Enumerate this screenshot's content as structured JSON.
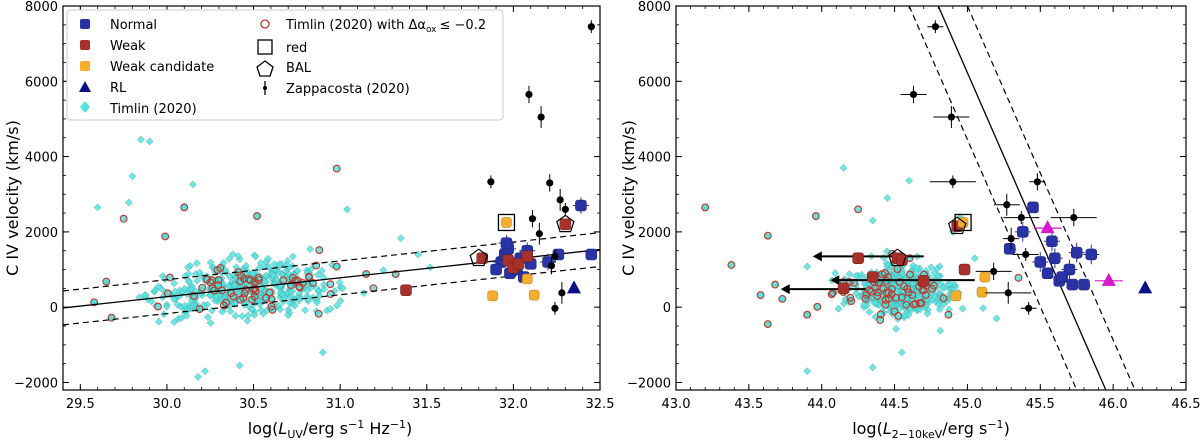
{
  "chart_data": [
    {
      "type": "scatter",
      "xlabel": "log(L_UV/erg s^-1 Hz^-1)",
      "ylabel": "C IV velocity (km/s)",
      "xlim": [
        29.4,
        32.5
      ],
      "ylim": [
        -2200,
        8000
      ],
      "xticks": [
        "29.5",
        "30.0",
        "30.5",
        "31.0",
        "31.5",
        "32.0",
        "32.5"
      ],
      "xtick_values": [
        29.5,
        30.0,
        30.5,
        31.0,
        31.5,
        32.0,
        32.5
      ],
      "yticks": [
        "−2000",
        "0",
        "2000",
        "4000",
        "6000",
        "8000"
      ],
      "ytick_values": [
        -2000,
        0,
        2000,
        4000,
        6000,
        8000
      ],
      "legend": {
        "placement": "top-left",
        "entries": [
          "Normal",
          "Weak",
          "Weak candidate",
          "RL",
          "Timlin (2020)",
          "Timlin (2020) with Δα_ox ≤ −0.2",
          "red",
          "BAL",
          "Zappacosta (2020)"
        ]
      },
      "fit_line": {
        "x": [
          29.4,
          32.5
        ],
        "y": [
          -20,
          1530
        ],
        "scatter": 450
      },
      "series": [
        {
          "name": "Normal",
          "points": [
            [
              31.93,
              1200
            ],
            [
              31.95,
              1400
            ],
            [
              31.97,
              1550
            ],
            [
              31.98,
              900
            ],
            [
              32.0,
              1100
            ],
            [
              32.02,
              1000
            ],
            [
              32.04,
              1300
            ],
            [
              32.06,
              800
            ],
            [
              32.08,
              1500
            ],
            [
              31.9,
              1000
            ],
            [
              32.2,
              1200
            ],
            [
              32.26,
              1400
            ],
            [
              32.39,
              2700
            ],
            [
              32.45,
              1400
            ],
            [
              31.96,
              1700
            ],
            [
              32.1,
              1150
            ]
          ]
        },
        {
          "name": "Weak",
          "points": [
            [
              31.38,
              450
            ],
            [
              31.82,
              1300
            ],
            [
              31.97,
              1250
            ],
            [
              32.0,
              1050
            ],
            [
              32.03,
              1150
            ],
            [
              32.08,
              1350
            ],
            [
              32.3,
              2200
            ]
          ]
        },
        {
          "name": "Weak candidate",
          "points": [
            [
              31.88,
              300
            ],
            [
              32.08,
              750
            ],
            [
              32.12,
              320
            ],
            [
              31.96,
              2250
            ]
          ]
        },
        {
          "name": "RL",
          "points": [
            [
              32.35,
              500
            ]
          ]
        },
        {
          "name": "Zappacosta (2020)",
          "points": [
            [
              32.45,
              7450
            ],
            [
              32.09,
              5650
            ],
            [
              32.16,
              5050
            ],
            [
              31.87,
              3330
            ],
            [
              32.21,
              3300
            ],
            [
              32.27,
              2850
            ],
            [
              32.3,
              2600
            ],
            [
              32.11,
              2350
            ],
            [
              32.15,
              1950
            ],
            [
              32.24,
              1350
            ],
            [
              32.22,
              1100
            ],
            [
              32.28,
              380
            ],
            [
              32.24,
              -30
            ]
          ]
        },
        {
          "name": "Timlin (2020)",
          "points": []
        }
      ]
    },
    {
      "type": "scatter",
      "xlabel": "log(L_2-10keV/erg s^-1)",
      "ylabel": "C IV velocity (km/s)",
      "xlim": [
        43.0,
        46.5
      ],
      "ylim": [
        -2200,
        8000
      ],
      "xticks": [
        "43.0",
        "43.5",
        "44.0",
        "44.5",
        "45.0",
        "45.5",
        "46.0",
        "46.5"
      ],
      "xtick_values": [
        43.0,
        43.5,
        44.0,
        44.5,
        45.0,
        45.5,
        46.0,
        46.5
      ],
      "yticks": [
        "−2000",
        "0",
        "2000",
        "4000",
        "6000",
        "8000"
      ],
      "ytick_values": [
        -2000,
        0,
        2000,
        4000,
        6000,
        8000
      ],
      "fit_line": {
        "x": [
          44.8,
          45.95
        ],
        "y": [
          8000,
          -2200
        ],
        "offset": 0.2
      },
      "series": [
        {
          "name": "Normal",
          "points": [
            [
              45.5,
              1200
            ],
            [
              45.55,
              900
            ],
            [
              45.6,
              1300
            ],
            [
              45.63,
              700
            ],
            [
              45.7,
              1000
            ],
            [
              45.72,
              600
            ],
            [
              45.75,
              1450
            ],
            [
              45.8,
              600
            ],
            [
              45.85,
              1400
            ],
            [
              45.45,
              2650
            ],
            [
              45.38,
              2000
            ],
            [
              45.29,
              1550
            ],
            [
              45.58,
              1750
            ],
            [
              45.65,
              800
            ]
          ]
        },
        {
          "name": "Weak",
          "points": [
            [
              44.15,
              500
            ],
            [
              44.25,
              1300
            ],
            [
              44.52,
              1300
            ],
            [
              44.35,
              800
            ],
            [
              44.55,
              1250
            ],
            [
              44.7,
              700
            ],
            [
              44.98,
              1000
            ],
            [
              44.93,
              2150
            ]
          ]
        },
        {
          "name": "Weak candidate",
          "points": [
            [
              44.92,
              300
            ],
            [
              45.1,
              400
            ],
            [
              45.12,
              800
            ],
            [
              44.97,
              2250
            ]
          ]
        },
        {
          "name": "RL",
          "points": [
            [
              46.22,
              500
            ]
          ]
        },
        {
          "name": "RL (magenta)",
          "points": [
            [
              45.55,
              2100
            ],
            [
              45.97,
              700
            ]
          ]
        },
        {
          "name": "Zappacosta (2020)",
          "points": [
            [
              44.78,
              7450
            ],
            [
              44.63,
              5650
            ],
            [
              44.89,
              5050
            ],
            [
              44.9,
              3330
            ],
            [
              45.48,
              3330
            ],
            [
              45.27,
              2720
            ],
            [
              45.37,
              2380
            ],
            [
              45.73,
              2380
            ],
            [
              45.3,
              1820
            ],
            [
              45.4,
              1400
            ],
            [
              45.18,
              950
            ],
            [
              45.28,
              380
            ],
            [
              45.42,
              -30
            ]
          ]
        },
        {
          "name": "Timlin (2020)",
          "points": []
        }
      ]
    }
  ],
  "legend": {
    "col1": [
      {
        "label": "Normal",
        "icon": "normal-marker-icon"
      },
      {
        "label": "Weak",
        "icon": "weak-marker-icon"
      },
      {
        "label": "Weak candidate",
        "icon": "weak-candidate-marker-icon"
      },
      {
        "label": "RL",
        "icon": "rl-triangle-icon"
      },
      {
        "label": "Timlin (2020)",
        "icon": "timlin-diamond-icon"
      }
    ],
    "col2": [
      {
        "label": "Timlin (2020) with Δα",
        "icon": "timlin-red-circle-icon"
      },
      {
        "label": "red",
        "icon": "red-square-icon"
      },
      {
        "label": "BAL",
        "icon": "bal-pentagon-icon"
      },
      {
        "label": "Zappacosta (2020)",
        "icon": "zappacosta-errorbar-icon"
      }
    ],
    "sub_ox": "ox",
    "cond": "≤ −0.2"
  },
  "colors": {
    "normal": "#2a33a6",
    "weak": "#a8302a",
    "weak_candidate": "#f4ad2c",
    "rl": "#0b0f8a",
    "timlin": "#55e2e0",
    "timlin_red": "#c0392b",
    "zappacosta": "#000000",
    "magenta": "#d41ac9"
  },
  "left_axis": {
    "xlabel_pre": "log(",
    "xlabel_L": "L",
    "xlabel_sub": "UV",
    "xlabel_mid": "/erg s",
    "xlabel_sup1": "−1",
    "xlabel_hz": " Hz",
    "xlabel_sup2": "−1",
    "xlabel_post": ")",
    "ylabel": "C IV velocity (km/s)"
  },
  "right_axis": {
    "xlabel_pre": "log(",
    "xlabel_L": "L",
    "xlabel_sub": "2−10keV",
    "xlabel_mid": "/erg s",
    "xlabel_sup1": "−1",
    "xlabel_post": ")",
    "ylabel": "C IV velocity (km/s)"
  }
}
